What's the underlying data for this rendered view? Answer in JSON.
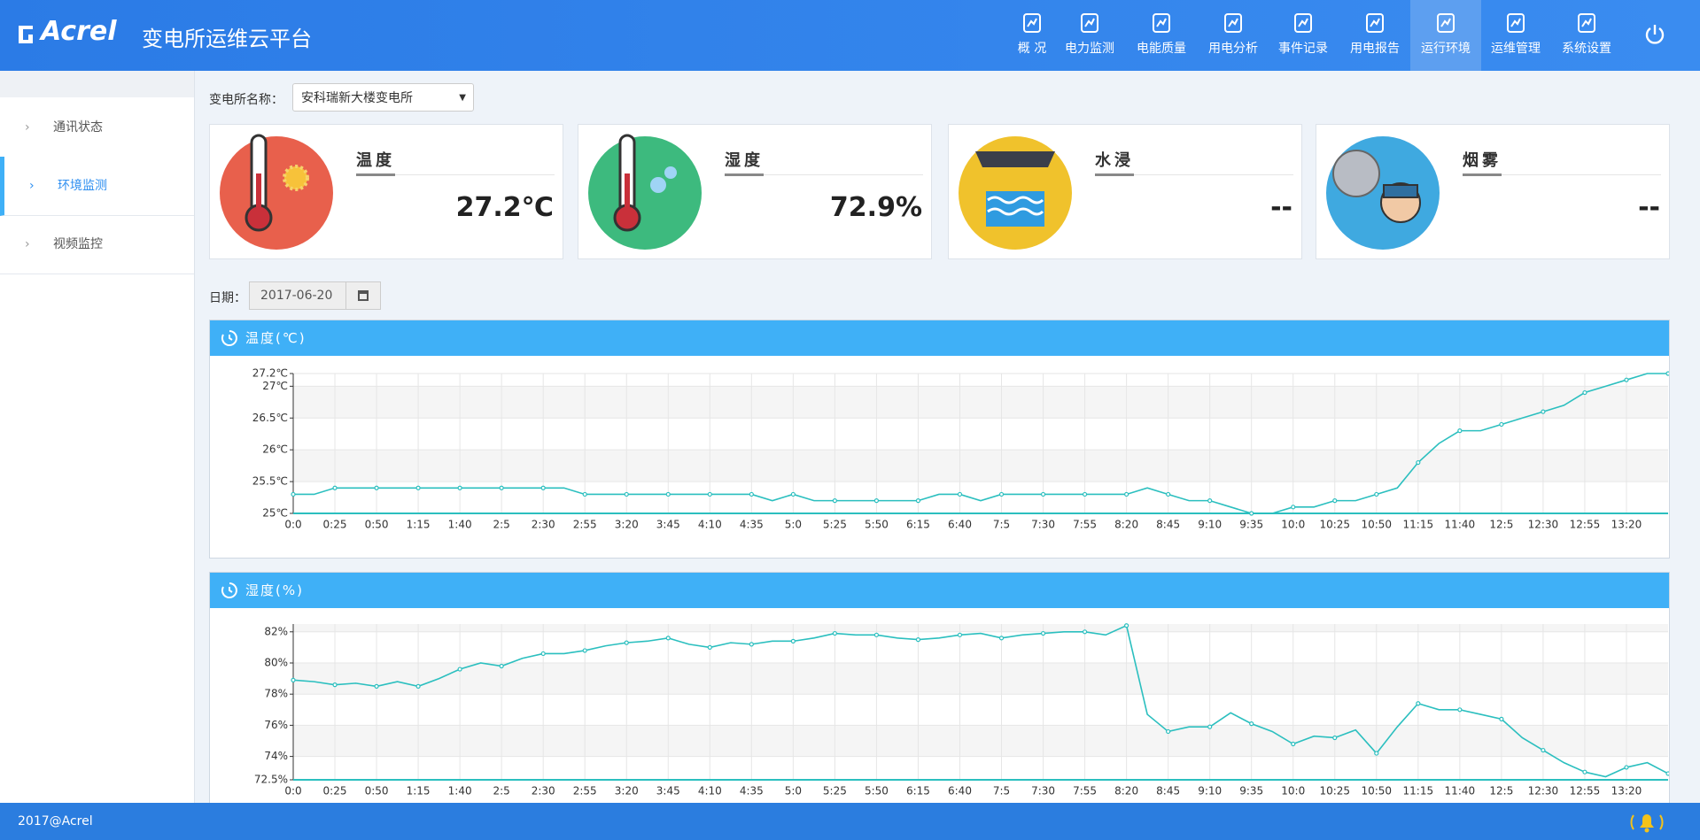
{
  "header": {
    "logo": "Acrel",
    "title": "变电所运维云平台",
    "nav": [
      "概 况",
      "电力监测",
      "电能质量",
      "用电分析",
      "事件记录",
      "用电报告",
      "运行环境",
      "运维管理",
      "系统设置"
    ]
  },
  "sidebar": [
    "通讯状态",
    "环境监测",
    "视频监控"
  ],
  "station": {
    "label": "变电所名称：",
    "value": "安科瑞新大楼变电所"
  },
  "cards": [
    {
      "label": "温度",
      "value": "27.2℃"
    },
    {
      "label": "湿度",
      "value": "72.9%"
    },
    {
      "label": "水浸",
      "value": "--"
    },
    {
      "label": "烟雾",
      "value": "--"
    }
  ],
  "date": {
    "label": "日期：",
    "value": "2017-06-20"
  },
  "chart_data": [
    {
      "type": "line",
      "title": "温度(℃)",
      "color": "#2bbfbf",
      "grid": true,
      "categories": [
        "0:0",
        null,
        "0:25",
        null,
        "0:50",
        null,
        "1:15",
        null,
        "1:40",
        null,
        "2:5",
        null,
        "2:30",
        null,
        "2:55",
        null,
        "3:20",
        null,
        "3:45",
        null,
        "4:10",
        null,
        "4:35",
        null,
        "5:0",
        null,
        "5:25",
        null,
        "5:50",
        null,
        "6:15",
        null,
        "6:40",
        null,
        "7:5",
        null,
        "7:30",
        null,
        "7:55",
        null,
        "8:20",
        null,
        "8:45",
        null,
        "9:10",
        null,
        "9:35",
        null,
        "10:0",
        null,
        "10:25",
        null,
        "10:50",
        null,
        "11:15",
        null,
        "11:40",
        null,
        "12:5",
        null,
        "12:30",
        null,
        "12:55",
        null,
        "13:20",
        null,
        null
      ],
      "values": [
        25.3,
        25.3,
        25.4,
        25.4,
        25.4,
        25.4,
        25.4,
        25.4,
        25.4,
        25.4,
        25.4,
        25.4,
        25.4,
        25.4,
        25.3,
        25.3,
        25.3,
        25.3,
        25.3,
        25.3,
        25.3,
        25.3,
        25.3,
        25.2,
        25.3,
        25.2,
        25.2,
        25.2,
        25.2,
        25.2,
        25.2,
        25.3,
        25.3,
        25.2,
        25.3,
        25.3,
        25.3,
        25.3,
        25.3,
        25.3,
        25.3,
        25.4,
        25.3,
        25.2,
        25.2,
        25.1,
        25.0,
        25.0,
        25.1,
        25.1,
        25.2,
        25.2,
        25.3,
        25.4,
        25.8,
        26.1,
        26.3,
        26.3,
        26.4,
        26.5,
        26.6,
        26.7,
        26.9,
        27.0,
        27.1,
        27.2,
        27.2
      ],
      "ylim": [
        25,
        27.2
      ],
      "yticks": [
        {
          "value": 25,
          "label": "25℃"
        },
        {
          "value": 25.5,
          "label": "25.5℃"
        },
        {
          "value": 26,
          "label": "26℃"
        },
        {
          "value": 26.5,
          "label": "26.5℃"
        },
        {
          "value": 27,
          "label": "27℃"
        },
        {
          "value": 27.2,
          "label": "27.2℃"
        }
      ]
    },
    {
      "type": "line",
      "title": "湿度(%)",
      "color": "#2bbfbf",
      "grid": true,
      "categories": [
        "0:0",
        null,
        "0:25",
        null,
        "0:50",
        null,
        "1:15",
        null,
        "1:40",
        null,
        "2:5",
        null,
        "2:30",
        null,
        "2:55",
        null,
        "3:20",
        null,
        "3:45",
        null,
        "4:10",
        null,
        "4:35",
        null,
        "5:0",
        null,
        "5:25",
        null,
        "5:50",
        null,
        "6:15",
        null,
        "6:40",
        null,
        "7:5",
        null,
        "7:30",
        null,
        "7:55",
        null,
        "8:20",
        null,
        "8:45",
        null,
        "9:10",
        null,
        "9:35",
        null,
        "10:0",
        null,
        "10:25",
        null,
        "10:50",
        null,
        "11:15",
        null,
        "11:40",
        null,
        "12:5",
        null,
        "12:30",
        null,
        "12:55",
        null,
        "13:20",
        null,
        null
      ],
      "values": [
        78.9,
        78.8,
        78.6,
        78.7,
        78.5,
        78.8,
        78.5,
        79.0,
        79.6,
        80.0,
        79.8,
        80.3,
        80.6,
        80.6,
        80.8,
        81.1,
        81.3,
        81.4,
        81.6,
        81.2,
        81.0,
        81.3,
        81.2,
        81.4,
        81.4,
        81.6,
        81.9,
        81.8,
        81.8,
        81.6,
        81.5,
        81.6,
        81.8,
        81.9,
        81.6,
        81.8,
        81.9,
        82.0,
        82.0,
        81.8,
        82.4,
        76.7,
        75.6,
        75.9,
        75.9,
        76.8,
        76.1,
        75.6,
        74.8,
        75.3,
        75.2,
        75.7,
        74.2,
        75.9,
        77.4,
        77.0,
        77.0,
        76.7,
        76.4,
        75.2,
        74.4,
        73.6,
        73.0,
        72.7,
        73.3,
        73.6,
        72.9
      ],
      "ylim": [
        72.5,
        82.5
      ],
      "yticks": [
        {
          "value": 72.5,
          "label": "72.5%"
        },
        {
          "value": 74,
          "label": "74%"
        },
        {
          "value": 76,
          "label": "76%"
        },
        {
          "value": 78,
          "label": "78%"
        },
        {
          "value": 80,
          "label": "80%"
        },
        {
          "value": 82,
          "label": "82%"
        }
      ]
    }
  ],
  "footer": "2017@Acrel"
}
